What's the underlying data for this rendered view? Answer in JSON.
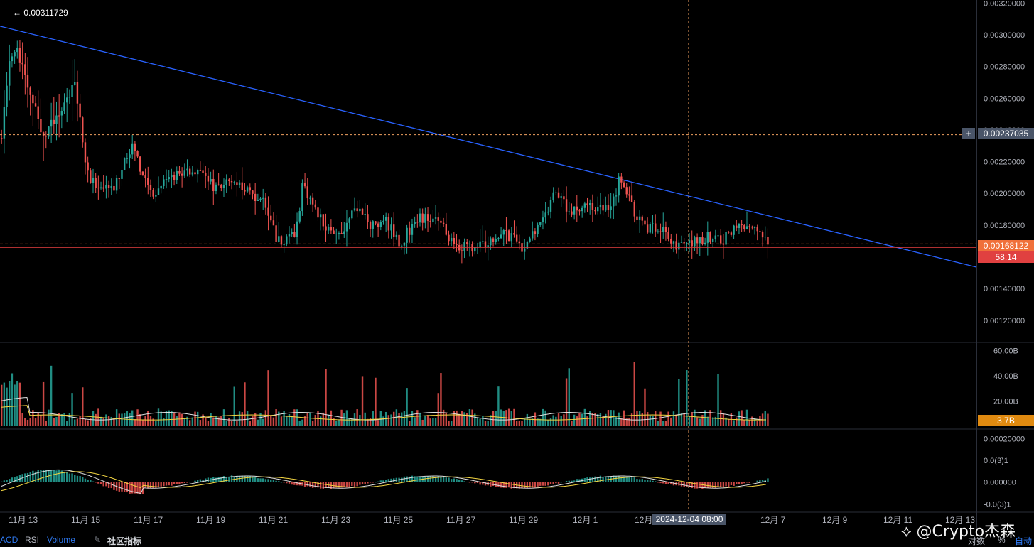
{
  "chart_data": {
    "type": "candlestick",
    "high_marker": "← 0.00311729",
    "price_axis_ticks": [
      "0.00320000",
      "0.00300000",
      "0.00280000",
      "0.00260000",
      "0.00240000",
      "0.00220000",
      "0.00200000",
      "0.00180000",
      "0.00140000",
      "0.00120000"
    ],
    "price_ticks_values": [
      0.0032,
      0.003,
      0.0028,
      0.0026,
      0.0024,
      0.0022,
      0.002,
      0.0018,
      0.0014,
      0.0012
    ],
    "price_range": [
      0.00106,
      0.00322
    ],
    "x_labels": [
      "11月 13",
      "11月 15",
      "11月 17",
      "11月 19",
      "11月 21",
      "11月 23",
      "11月 25",
      "11月 27",
      "11月 29",
      "12月 1",
      "12月",
      "12月 7",
      "12月 9",
      "12月 11",
      "12月 13"
    ],
    "crosshair": {
      "price_label": "0.00237035",
      "price": 0.00237035,
      "time_label": "2024-12-04 08:00"
    },
    "current_price": {
      "label": "0.00168122",
      "value": 0.00168122,
      "countdown": "58:14"
    },
    "support_level": 0.00166,
    "trendline": {
      "start": [
        0,
        0.003055
      ],
      "end": [
        1374,
        0.001535
      ]
    },
    "volume": {
      "ticks": [
        "60.00B",
        "40.00B",
        "20.00B"
      ],
      "tick_values": [
        60,
        40,
        20
      ],
      "current_label": "3.7B",
      "current_value": 3.7
    },
    "macd": {
      "ticks": [
        "0.00020000",
        "0.0(3)1",
        "0.000000",
        "-0.0(3)1"
      ],
      "tick_values": [
        0.0002,
        0.0001,
        0,
        -0.0001
      ]
    },
    "colors": {
      "up": "#26a69a",
      "down": "#ef5350",
      "trend": "#2962ff",
      "ma_white": "#e0e0e0",
      "ma_yellow": "#f5d742",
      "crosshair": "#f0a060"
    }
  },
  "bottom": {
    "tabs": [
      "ACD",
      "RSI",
      "Volume",
      "社区指标"
    ],
    "right": [
      "对数",
      "%",
      "自动"
    ]
  },
  "watermark": "@Crypto杰森"
}
